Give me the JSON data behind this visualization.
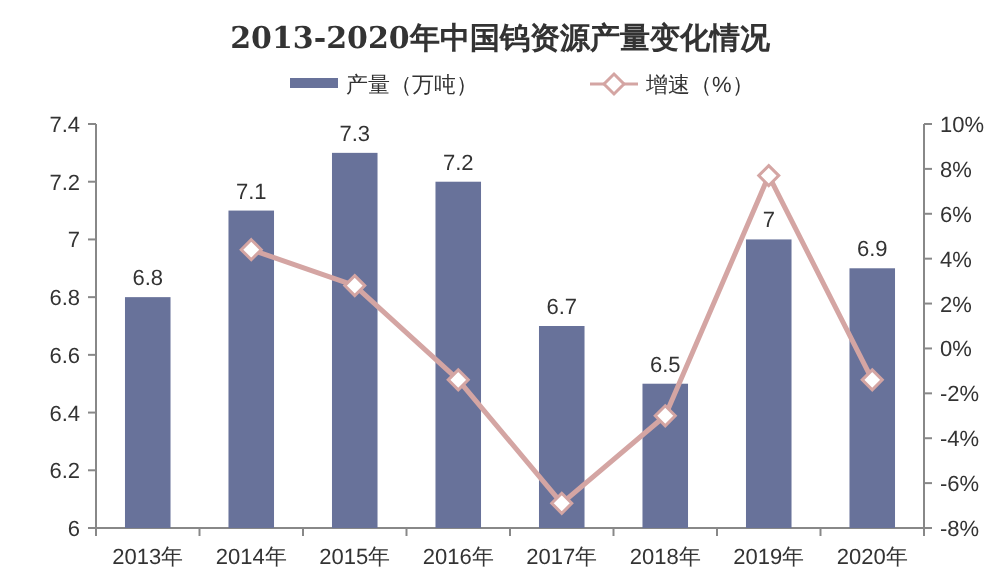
{
  "chart_data": {
    "type": "bar",
    "title": "2013-2020年中国钨资源产量变化情况",
    "categories": [
      "2013年",
      "2014年",
      "2015年",
      "2016年",
      "2017年",
      "2018年",
      "2019年",
      "2020年"
    ],
    "series": [
      {
        "name": "产量（万吨）",
        "color": "#68729a",
        "values": [
          6.8,
          7.1,
          7.3,
          7.2,
          6.7,
          6.5,
          7.0,
          6.9
        ],
        "value_labels": [
          "6.8",
          "7.1",
          "7.3",
          "7.2",
          "6.7",
          "6.5",
          "7",
          "6.9"
        ]
      },
      {
        "name": "增速（%）",
        "type": "line",
        "axis": "y2",
        "color": "#d4a5a3",
        "marker": "diamond",
        "values": [
          null,
          4.4,
          2.8,
          -1.4,
          -6.9,
          -3.0,
          7.7,
          -1.4
        ]
      }
    ],
    "ylim": [
      6,
      7.4
    ],
    "yticks": [
      6,
      6.2,
      6.4,
      6.6,
      6.8,
      7,
      7.2,
      7.4
    ],
    "y2lim": [
      -8,
      10
    ],
    "y2ticks": [
      {
        "value": -8,
        "label": "-8%"
      },
      {
        "value": -6,
        "label": "-6%"
      },
      {
        "value": -4,
        "label": "-4%"
      },
      {
        "value": -2,
        "label": "-2%"
      },
      {
        "value": 0,
        "label": "0%"
      },
      {
        "value": 2,
        "label": "2%"
      },
      {
        "value": 4,
        "label": "4%"
      },
      {
        "value": 6,
        "label": "6%"
      },
      {
        "value": 8,
        "label": "8%"
      },
      {
        "value": 10,
        "label": "10%"
      }
    ],
    "legend": "top",
    "grid": false
  }
}
